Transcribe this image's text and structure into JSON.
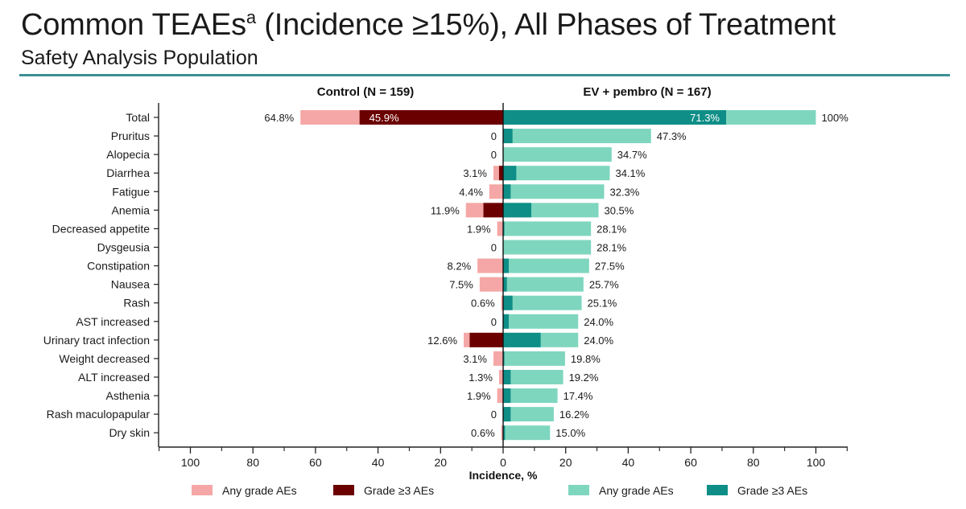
{
  "header": {
    "title_main": "Common TEAEs",
    "title_sup": "a",
    "title_rest": " (Incidence ≥15%), All Phases of Treatment",
    "subtitle": "Safety Analysis Population"
  },
  "colors": {
    "control_any": "#f4a7a6",
    "control_g3": "#6b0000",
    "ev_any": "#7fd6bf",
    "ev_g3": "#0e8e86",
    "rule": "#3b8f96"
  },
  "chart_data": {
    "type": "bar",
    "orientation": "horizontal-butterfly",
    "left_panel_title": "Control (N = 159)",
    "right_panel_title": "EV + pembro (N = 167)",
    "xlabel": "Incidence, %",
    "xlim": [
      -100,
      100
    ],
    "xticks": [
      -100,
      -80,
      -60,
      -40,
      -20,
      0,
      20,
      40,
      60,
      80,
      100
    ],
    "xtick_labels": [
      "100",
      "80",
      "60",
      "40",
      "20",
      "0",
      "20",
      "40",
      "60",
      "80",
      "100"
    ],
    "categories": [
      "Total",
      "Pruritus",
      "Alopecia",
      "Diarrhea",
      "Fatigue",
      "Anemia",
      "Decreased appetite",
      "Dysgeusia",
      "Constipation",
      "Nausea",
      "Rash",
      "AST increased",
      "Urinary tract infection",
      "Weight decreased",
      "ALT increased",
      "Asthenia",
      "Rash maculopapular",
      "Dry skin"
    ],
    "series": [
      {
        "name": "Any grade AEs",
        "arm": "control",
        "values": [
          64.8,
          0,
          0,
          3.1,
          4.4,
          11.9,
          1.9,
          0,
          8.2,
          7.5,
          0.6,
          0,
          12.6,
          3.1,
          1.3,
          1.9,
          0,
          0.6
        ]
      },
      {
        "name": "Grade ≥3 AEs",
        "arm": "control",
        "values": [
          45.9,
          0,
          0,
          1.3,
          0,
          6.3,
          0,
          0,
          0,
          0,
          0,
          0,
          10.7,
          0,
          0,
          0,
          0,
          0
        ]
      },
      {
        "name": "Any grade AEs",
        "arm": "ev_pembro",
        "values": [
          100,
          47.3,
          34.7,
          34.1,
          32.3,
          30.5,
          28.1,
          28.1,
          27.5,
          25.7,
          25.1,
          24.0,
          24.0,
          19.8,
          19.2,
          17.4,
          16.2,
          15.0
        ]
      },
      {
        "name": "Grade ≥3 AEs",
        "arm": "ev_pembro",
        "values": [
          71.3,
          3.0,
          0,
          4.2,
          2.4,
          9.0,
          0.4,
          0,
          1.8,
          1.2,
          3.0,
          1.8,
          12.0,
          0.4,
          2.4,
          2.4,
          2.4,
          0.6
        ]
      }
    ],
    "left_value_labels": [
      "64.8%",
      "0",
      "0",
      "3.1%",
      "4.4%",
      "11.9%",
      "1.9%",
      "0",
      "8.2%",
      "7.5%",
      "0.6%",
      "0",
      "12.6%",
      "3.1%",
      "1.3%",
      "1.9%",
      "0",
      "0.6%"
    ],
    "right_value_labels": [
      "100%",
      "47.3%",
      "34.7%",
      "34.1%",
      "32.3%",
      "30.5%",
      "28.1%",
      "28.1%",
      "27.5%",
      "25.7%",
      "25.1%",
      "24.0%",
      "24.0%",
      "19.8%",
      "19.2%",
      "17.4%",
      "16.2%",
      "15.0%"
    ],
    "inbar_labels": {
      "control_total_g3": "45.9%",
      "ev_total_g3": "71.3%"
    },
    "legend": [
      {
        "label": "Any grade AEs",
        "color_key": "control_any"
      },
      {
        "label": "Grade ≥3 AEs",
        "color_key": "control_g3"
      },
      {
        "label": "Any grade AEs",
        "color_key": "ev_any"
      },
      {
        "label": "Grade ≥3 AEs",
        "color_key": "ev_g3"
      }
    ],
    "legend_position": "bottom",
    "grid": false
  }
}
